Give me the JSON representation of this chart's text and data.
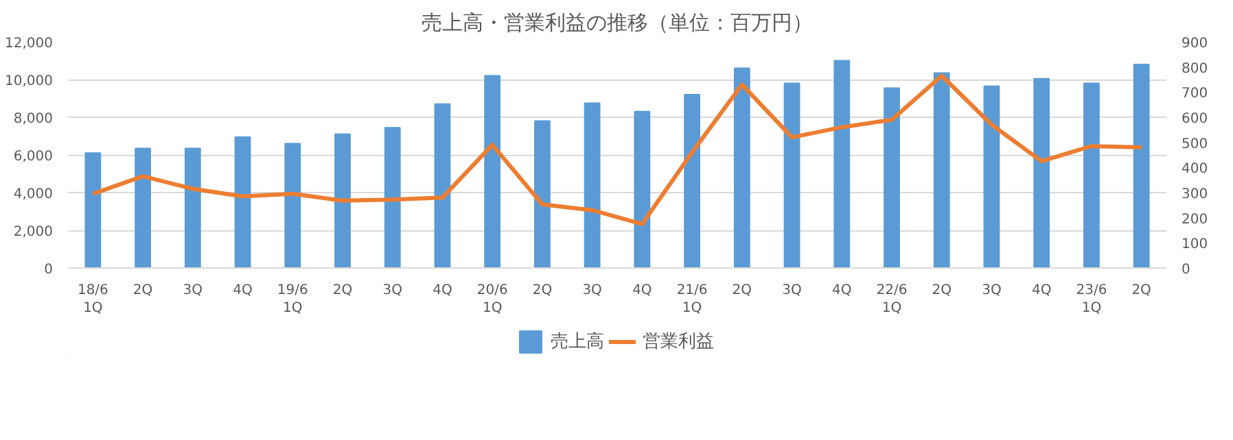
{
  "chart_data": {
    "type": "bar",
    "title": "売上高・営業利益の推移（単位：百万円）",
    "categories": [
      "18/6\n1Q",
      "2Q",
      "3Q",
      "4Q",
      "19/6\n1Q",
      "2Q",
      "3Q",
      "4Q",
      "20/6\n1Q",
      "2Q",
      "3Q",
      "4Q",
      "21/6\n1Q",
      "2Q",
      "3Q",
      "4Q",
      "22/6\n1Q",
      "2Q",
      "3Q",
      "4Q",
      "23/6\n1Q",
      "2Q"
    ],
    "series": [
      {
        "name": "売上高",
        "type": "bar",
        "color": "#5b9bd5",
        "values": [
          6100,
          6350,
          6350,
          6950,
          6600,
          7100,
          7450,
          8700,
          10200,
          7800,
          8750,
          8300,
          9200,
          10600,
          9800,
          11000,
          9550,
          10350,
          9650,
          10050,
          9800,
          10800
        ]
      },
      {
        "name": "営業利益",
        "type": "line",
        "axis": "y2",
        "color": "#ed7d31",
        "values": [
          295,
          365,
          315,
          285,
          295,
          268,
          272,
          280,
          490,
          253,
          230,
          175,
          460,
          730,
          520,
          560,
          590,
          765,
          570,
          425,
          485,
          480
        ]
      }
    ],
    "ylim": [
      0,
      12000
    ],
    "yticks": [
      {
        "value": 0,
        "label": "0"
      },
      {
        "value": 2000,
        "label": "2,000"
      },
      {
        "value": 4000,
        "label": "4,000"
      },
      {
        "value": 6000,
        "label": "6,000"
      },
      {
        "value": 8000,
        "label": "8,000"
      },
      {
        "value": 10000,
        "label": "10,000"
      },
      {
        "value": 12000,
        "label": "12,000"
      }
    ],
    "y2lim": [
      0,
      900
    ],
    "y2ticks": [
      0,
      100,
      200,
      300,
      400,
      500,
      600,
      700,
      800,
      900
    ],
    "grid": "y",
    "legend": "bottom"
  }
}
